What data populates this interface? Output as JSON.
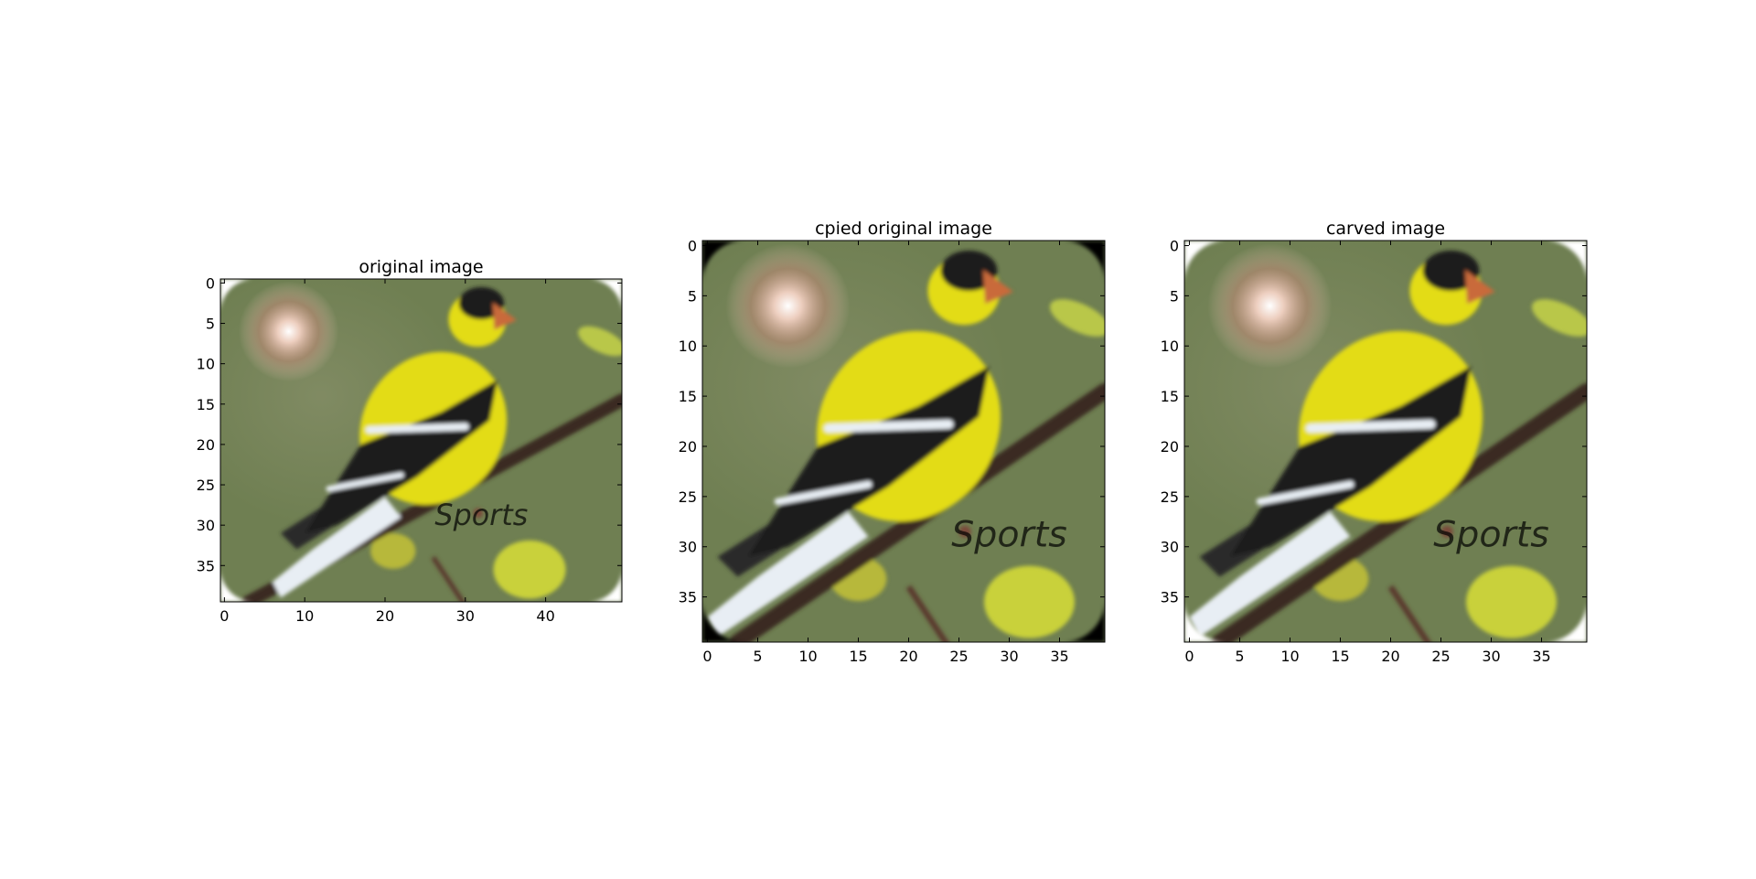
{
  "chart_data": [
    {
      "type": "image",
      "title": "original image",
      "image_size": {
        "rows": 40,
        "cols": 50
      },
      "xlim": [
        -0.5,
        49.5
      ],
      "ylim": [
        39.5,
        -0.5
      ],
      "xticks": [
        0,
        10,
        20,
        30,
        40
      ],
      "yticks": [
        0,
        5,
        10,
        15,
        20,
        25,
        30,
        35
      ],
      "corners": "white",
      "content": {
        "glow_center": [
          8,
          6
        ],
        "bird_head": [
          32,
          2.5
        ],
        "bird_beak": [
          34,
          4
        ],
        "branch_from": [
          3,
          39.5
        ],
        "branch_to": [
          49.5,
          14.5
        ],
        "watermark_text": "Sports",
        "watermark_at": [
          32,
          30
        ]
      }
    },
    {
      "type": "image",
      "title": "cpied original image",
      "image_size": {
        "rows": 40,
        "cols": 40
      },
      "xlim": [
        -0.5,
        39.5
      ],
      "ylim": [
        39.5,
        -0.5
      ],
      "xticks": [
        0,
        5,
        10,
        15,
        20,
        25,
        30,
        35
      ],
      "yticks": [
        0,
        5,
        10,
        15,
        20,
        25,
        30,
        35
      ],
      "corners": "black",
      "content": {
        "glow_center": [
          8,
          6
        ],
        "bird_head": [
          26,
          2.5
        ],
        "bird_beak": [
          28,
          4
        ],
        "branch_from": [
          3,
          39.5
        ],
        "branch_to": [
          39.5,
          14.5
        ],
        "watermark_text": "Sports",
        "watermark_at": [
          30,
          30
        ]
      }
    },
    {
      "type": "image",
      "title": "carved image",
      "image_size": {
        "rows": 40,
        "cols": 40
      },
      "xlim": [
        -0.5,
        39.5
      ],
      "ylim": [
        39.5,
        -0.5
      ],
      "xticks": [
        0,
        5,
        10,
        15,
        20,
        25,
        30,
        35
      ],
      "yticks": [
        0,
        5,
        10,
        15,
        20,
        25,
        30,
        35
      ],
      "corners": "white",
      "content": {
        "glow_center": [
          8,
          6
        ],
        "bird_head": [
          26,
          2.5
        ],
        "bird_beak": [
          28,
          4
        ],
        "branch_from": [
          3,
          39.5
        ],
        "branch_to": [
          39.5,
          14.5
        ],
        "watermark_text": "Sports",
        "watermark_at": [
          30,
          30
        ]
      }
    }
  ],
  "colors": {
    "background_green": "#6f7f52",
    "background_light": "#8e9470",
    "glow": "#f3d2c4",
    "bird_yellow": "#e3dc16",
    "bird_black": "#1c1c1c",
    "wing_white": "#e8eef4",
    "beak": "#c96a3a",
    "branch": "#3a2b22",
    "leaf": "#c9d13a"
  }
}
